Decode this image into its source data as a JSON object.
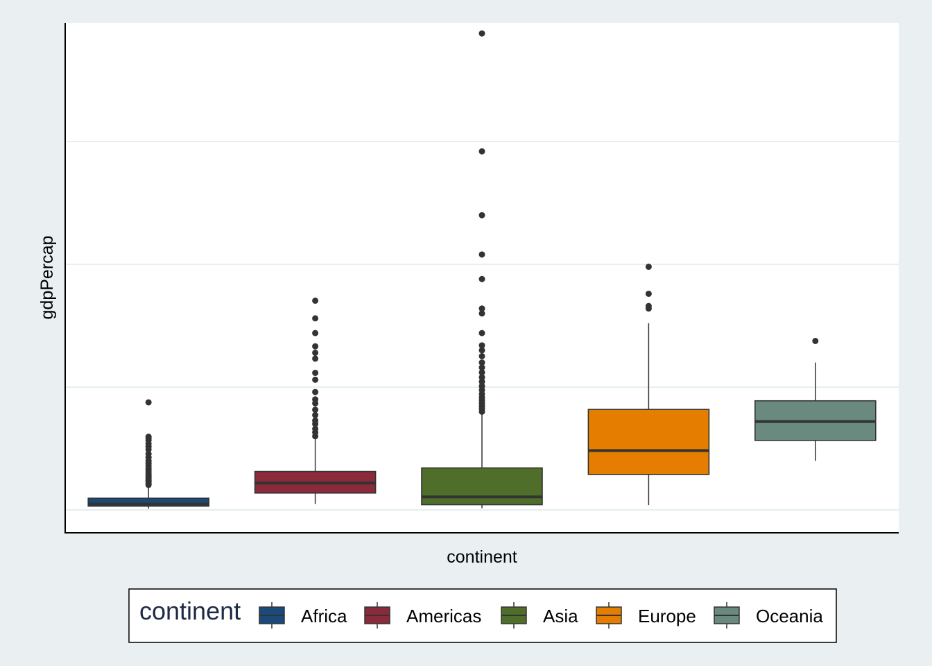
{
  "chart_data": {
    "type": "box",
    "xlabel": "continent",
    "ylabel": "gdpPercap",
    "ylim": [
      0,
      115000
    ],
    "grid": true,
    "legend_position": "bottom",
    "legend_title": "continent",
    "categories": [
      "Africa",
      "Americas",
      "Asia",
      "Europe",
      "Oceania"
    ],
    "boxes": [
      {
        "name": "Africa",
        "color": "#1a4a7a",
        "lower_whisker": 241,
        "q1": 761,
        "median": 1192,
        "q3": 2377,
        "upper_whisker": 4700,
        "outliers": [
          5100,
          5400,
          5700,
          6000,
          6300,
          6600,
          6900,
          7300,
          7700,
          8100,
          8500,
          9000,
          9500,
          10000,
          10700,
          11400,
          12300,
          12900,
          13500,
          14200,
          14600,
          14900,
          21900
        ]
      },
      {
        "name": "Americas",
        "color": "#8b2a3a",
        "lower_whisker": 1202,
        "q1": 3428,
        "median": 5466,
        "q3": 7830,
        "upper_whisker": 14500,
        "outliers": [
          15000,
          15800,
          16500,
          17500,
          18200,
          19300,
          20400,
          21700,
          22500,
          24000,
          26500,
          27900,
          30800,
          32000,
          33300,
          36000,
          39000,
          42600
        ]
      },
      {
        "name": "Asia",
        "color": "#4f6e2a",
        "lower_whisker": 331,
        "q1": 1057,
        "median": 2647,
        "q3": 8549,
        "upper_whisker": 19500,
        "outliers": [
          20000,
          20600,
          21100,
          21700,
          22300,
          22900,
          23600,
          24400,
          25200,
          26100,
          27000,
          28000,
          29000,
          30000,
          31300,
          32500,
          33500,
          36000,
          40000,
          41000,
          47000,
          52000,
          60000,
          73000,
          97000,
          108000,
          109000,
          113500
        ]
      },
      {
        "name": "Europe",
        "color": "#e57e00",
        "lower_whisker": 974,
        "q1": 7213,
        "median": 12082,
        "q3": 20461,
        "upper_whisker": 38000,
        "outliers": [
          41000,
          41500,
          44000,
          49500
        ]
      },
      {
        "name": "Oceania",
        "color": "#6a8a80",
        "lower_whisker": 10000,
        "q1": 14142,
        "median": 17983,
        "q3": 22214,
        "upper_whisker": 30000,
        "outliers": [
          34400
        ]
      }
    ]
  }
}
